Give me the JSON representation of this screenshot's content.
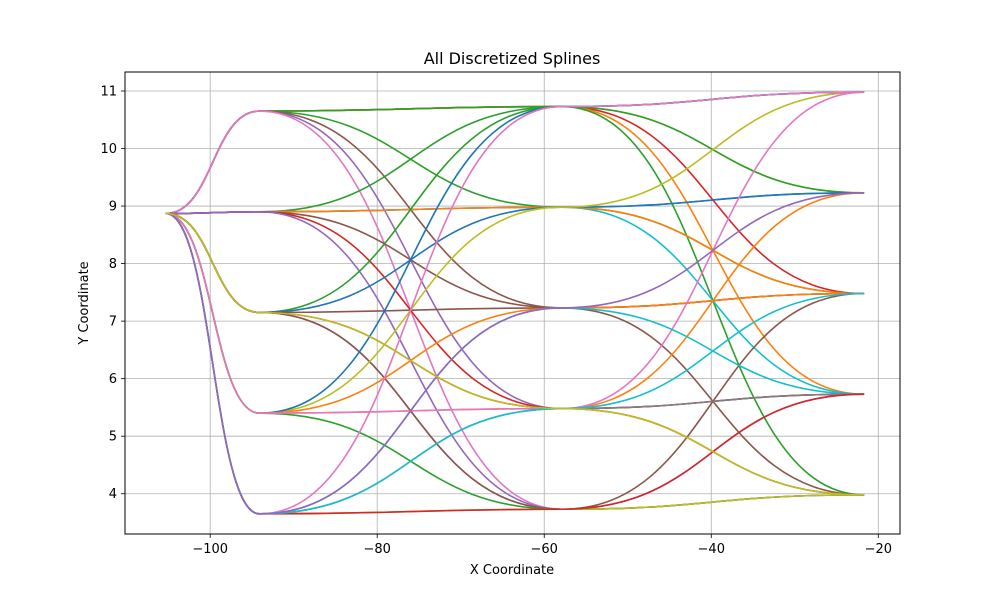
{
  "chart_data": {
    "type": "line",
    "title": "All Discretized Splines",
    "xlabel": "X Coordinate",
    "ylabel": "Y Coordinate",
    "xlim": [
      -110.2,
      -17.4
    ],
    "ylim": [
      3.3,
      11.33
    ],
    "grid": true,
    "xticks": [
      -100,
      -80,
      -60,
      -40,
      -20
    ],
    "yticks": [
      4,
      5,
      6,
      7,
      8,
      9,
      10,
      11
    ],
    "xtick_labels": [
      "−100",
      "−80",
      "−60",
      "−40",
      "−20"
    ],
    "ytick_labels": [
      "4",
      "5",
      "6",
      "7",
      "8",
      "9",
      "10",
      "11"
    ],
    "layers": [
      {
        "x": -105.3,
        "y": [
          8.87
        ]
      },
      {
        "x": -94.1,
        "y": [
          10.65,
          8.9,
          7.15,
          5.4,
          3.65
        ]
      },
      {
        "x": -57.9,
        "y": [
          10.73,
          8.98,
          7.23,
          5.48,
          3.73
        ]
      },
      {
        "x": -21.7,
        "y": [
          10.98,
          9.23,
          7.48,
          5.73,
          3.98
        ]
      }
    ],
    "colors": [
      "#1f77b4",
      "#ff7f0e",
      "#2ca02c",
      "#d62728",
      "#9467bd",
      "#8c564b",
      "#e377c2",
      "#7f7f7f",
      "#bcbd22",
      "#17becf"
    ],
    "series": [
      {
        "x": [
          -105.3,
          -94.1,
          -57.9,
          -21.7
        ],
        "y": [
          8.87,
          10.65,
          10.73,
          10.98
        ],
        "color": "#1f77b4"
      },
      {
        "x": [
          -105.3,
          -94.1,
          -57.9,
          -21.7
        ],
        "y": [
          8.87,
          10.65,
          10.73,
          9.23
        ],
        "color": "#bcbd22"
      },
      {
        "x": [
          -105.3,
          -94.1,
          -57.9,
          -21.7
        ],
        "y": [
          8.87,
          10.65,
          10.73,
          7.48
        ],
        "color": "#d62728"
      },
      {
        "x": [
          -105.3,
          -94.1,
          -57.9,
          -21.7
        ],
        "y": [
          8.87,
          10.65,
          10.73,
          5.73
        ],
        "color": "#ff7f0e"
      },
      {
        "x": [
          -105.3,
          -94.1,
          -57.9,
          -21.7
        ],
        "y": [
          8.87,
          10.65,
          10.73,
          3.98
        ],
        "color": "#2ca02c"
      },
      {
        "x": [
          -105.3,
          -94.1,
          -57.9,
          -21.7
        ],
        "y": [
          8.87,
          10.65,
          8.98,
          7.48
        ],
        "color": "#2ca02c"
      },
      {
        "x": [
          -105.3,
          -94.1,
          -57.9,
          -21.7
        ],
        "y": [
          8.87,
          10.65,
          7.23,
          3.98
        ],
        "color": "#8c564b"
      },
      {
        "x": [
          -105.3,
          -94.1,
          -57.9,
          -21.7
        ],
        "y": [
          8.87,
          10.65,
          5.48,
          5.73
        ],
        "color": "#9467bd"
      },
      {
        "x": [
          -105.3,
          -94.1,
          -57.9,
          -21.7
        ],
        "y": [
          8.87,
          10.65,
          3.73,
          3.98
        ],
        "color": "#e377c2"
      },
      {
        "x": [
          -105.3,
          -94.1,
          -57.9,
          -21.7
        ],
        "y": [
          8.87,
          8.9,
          10.73,
          10.98
        ],
        "color": "#2ca02c"
      },
      {
        "x": [
          -105.3,
          -94.1,
          -57.9,
          -21.7
        ],
        "y": [
          8.87,
          8.9,
          8.98,
          9.23
        ],
        "color": "#1f77b4"
      },
      {
        "x": [
          -105.3,
          -94.1,
          -57.9,
          -21.7
        ],
        "y": [
          8.87,
          8.9,
          8.98,
          5.73
        ],
        "color": "#17becf"
      },
      {
        "x": [
          -105.3,
          -94.1,
          -57.9,
          -21.7
        ],
        "y": [
          8.87,
          8.9,
          8.98,
          7.48
        ],
        "color": "#ff7f0e"
      },
      {
        "x": [
          -105.3,
          -94.1,
          -57.9,
          -21.7
        ],
        "y": [
          8.87,
          8.9,
          7.23,
          7.48
        ],
        "color": "#8c564b"
      },
      {
        "x": [
          -105.3,
          -94.1,
          -57.9,
          -21.7
        ],
        "y": [
          8.87,
          8.9,
          5.48,
          3.98
        ],
        "color": "#d62728"
      },
      {
        "x": [
          -105.3,
          -94.1,
          -57.9,
          -21.7
        ],
        "y": [
          8.87,
          8.9,
          3.73,
          5.73
        ],
        "color": "#9467bd"
      },
      {
        "x": [
          -105.3,
          -94.1,
          -57.9,
          -21.7
        ],
        "y": [
          8.87,
          7.15,
          10.73,
          9.23
        ],
        "color": "#2ca02c"
      },
      {
        "x": [
          -105.3,
          -94.1,
          -57.9,
          -21.7
        ],
        "y": [
          8.87,
          7.15,
          8.98,
          9.23
        ],
        "color": "#1f77b4"
      },
      {
        "x": [
          -105.3,
          -94.1,
          -57.9,
          -21.7
        ],
        "y": [
          8.87,
          7.15,
          7.23,
          7.48
        ],
        "color": "#8c564b"
      },
      {
        "x": [
          -105.3,
          -94.1,
          -57.9,
          -21.7
        ],
        "y": [
          8.87,
          7.15,
          5.48,
          5.73
        ],
        "color": "#d62728"
      },
      {
        "x": [
          -105.3,
          -94.1,
          -57.9,
          -21.7
        ],
        "y": [
          8.87,
          7.15,
          3.73,
          3.98
        ],
        "color": "#9467bd"
      },
      {
        "x": [
          -105.3,
          -94.1,
          -57.9,
          -21.7
        ],
        "y": [
          8.87,
          7.15,
          3.73,
          7.48
        ],
        "color": "#8c564b"
      },
      {
        "x": [
          -105.3,
          -94.1,
          -57.9,
          -21.7
        ],
        "y": [
          8.87,
          5.4,
          8.98,
          10.98
        ],
        "color": "#bcbd22"
      },
      {
        "x": [
          -105.3,
          -94.1,
          -57.9,
          -21.7
        ],
        "y": [
          8.87,
          5.4,
          10.73,
          10.98
        ],
        "color": "#1f77b4"
      },
      {
        "x": [
          -105.3,
          -94.1,
          -57.9,
          -21.7
        ],
        "y": [
          8.87,
          5.4,
          5.48,
          9.23
        ],
        "color": "#ff7f0e"
      },
      {
        "x": [
          -105.3,
          -94.1,
          -57.9,
          -21.7
        ],
        "y": [
          8.87,
          5.4,
          7.23,
          7.48
        ],
        "color": "#ff7f0e"
      },
      {
        "x": [
          -105.3,
          -94.1,
          -57.9,
          -21.7
        ],
        "y": [
          8.87,
          5.4,
          3.73,
          3.98
        ],
        "color": "#2ca02c"
      },
      {
        "x": [
          -105.3,
          -94.1,
          -57.9,
          -21.7
        ],
        "y": [
          8.87,
          5.4,
          5.48,
          10.98
        ],
        "color": "#e377c2"
      },
      {
        "x": [
          -105.3,
          -94.1,
          -57.9,
          -21.7
        ],
        "y": [
          8.87,
          3.65,
          10.73,
          10.98
        ],
        "color": "#e377c2"
      },
      {
        "x": [
          -105.3,
          -94.1,
          -57.9,
          -21.7
        ],
        "y": [
          8.87,
          3.65,
          7.23,
          5.73
        ],
        "color": "#17becf"
      },
      {
        "x": [
          -105.3,
          -94.1,
          -57.9,
          -21.7
        ],
        "y": [
          8.87,
          3.65,
          5.48,
          5.73
        ],
        "color": "#7f7f7f"
      },
      {
        "x": [
          -105.3,
          -94.1,
          -57.9,
          -21.7
        ],
        "y": [
          8.87,
          3.65,
          3.73,
          3.98
        ],
        "color": "#bcbd22"
      },
      {
        "x": [
          -105.3,
          -94.1,
          -57.9,
          -21.7
        ],
        "y": [
          8.87,
          3.65,
          3.73,
          5.73
        ],
        "color": "#d62728"
      },
      {
        "x": [
          -105.3,
          -94.1,
          -57.9,
          -21.7
        ],
        "y": [
          8.87,
          3.65,
          5.48,
          7.48
        ],
        "color": "#17becf"
      },
      {
        "x": [
          -105.3,
          -94.1,
          -57.9,
          -21.7
        ],
        "y": [
          8.87,
          3.65,
          7.23,
          9.23
        ],
        "color": "#9467bd"
      },
      {
        "x": [
          -105.3,
          -94.1,
          -57.9,
          -21.7
        ],
        "y": [
          8.87,
          7.15,
          5.48,
          3.98
        ],
        "color": "#bcbd22"
      }
    ]
  }
}
